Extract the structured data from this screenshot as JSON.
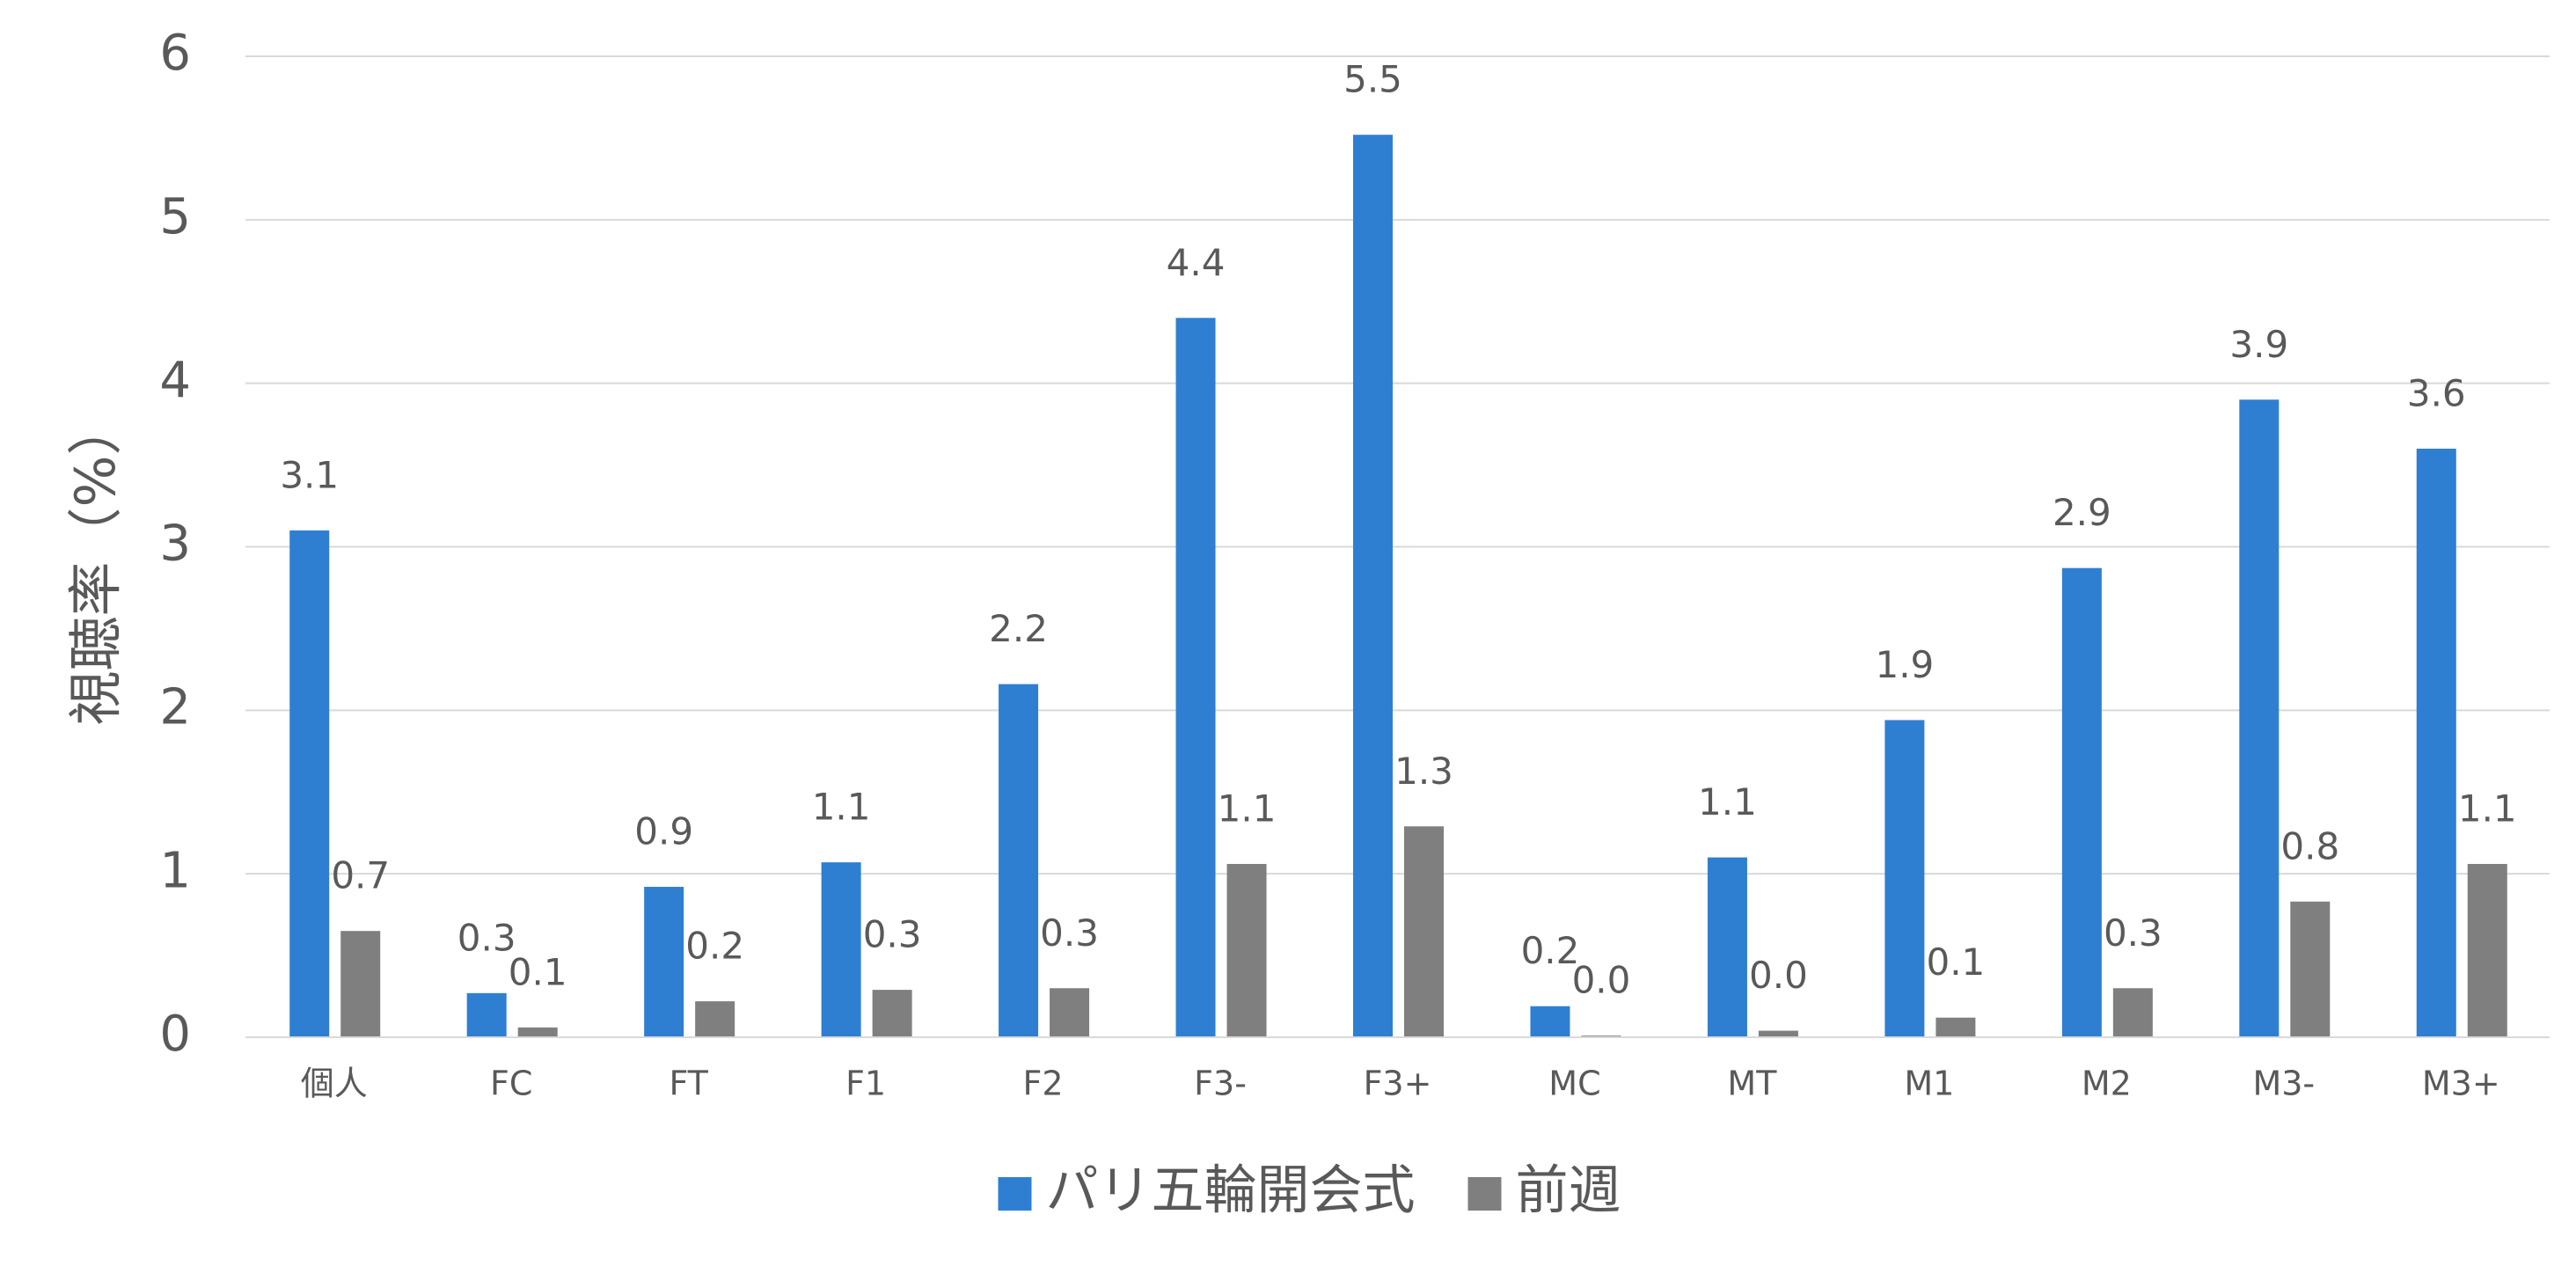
{
  "chart_data": {
    "type": "bar",
    "y_label": "視聴率（%）",
    "categories": [
      "個人",
      "FC",
      "FT",
      "F1",
      "F2",
      "F3-",
      "F3+",
      "MC",
      "MT",
      "M1",
      "M2",
      "M3-",
      "M3+"
    ],
    "series": [
      {
        "name": "パリ五輪開会式",
        "color": "#2e7fd2",
        "values": [
          3.1,
          0.27,
          0.92,
          1.07,
          2.16,
          4.4,
          5.52,
          0.19,
          1.1,
          1.94,
          2.87,
          3.9,
          3.6
        ],
        "value_labels": [
          "3.1",
          "0.3",
          "0.9",
          "1.1",
          "2.2",
          "4.4",
          "5.5",
          "0.2",
          "1.1",
          "1.9",
          "2.9",
          "3.9",
          "3.6"
        ]
      },
      {
        "name": "前週",
        "color": "#7f7f7f",
        "values": [
          0.65,
          0.06,
          0.22,
          0.29,
          0.3,
          1.06,
          1.29,
          0.01,
          0.04,
          0.12,
          0.3,
          0.83,
          1.06
        ],
        "value_labels": [
          "0.7",
          "0.1",
          "0.2",
          "0.3",
          "0.3",
          "1.1",
          "1.3",
          "0.0",
          "0.0",
          "0.1",
          "0.3",
          "0.8",
          "1.1"
        ]
      }
    ],
    "ylim": [
      0,
      6
    ],
    "yticks": [
      0,
      1,
      2,
      3,
      4,
      5,
      6
    ],
    "grid": true,
    "legend": "bottom"
  }
}
